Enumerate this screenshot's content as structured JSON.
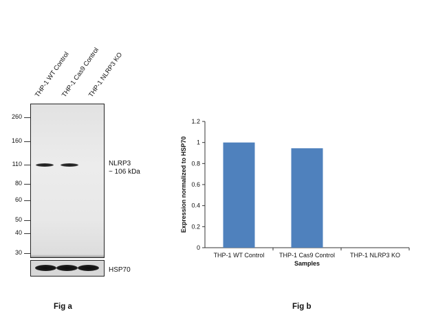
{
  "fig_a": {
    "lane_labels": [
      "THP-1 WT Control",
      "THP-1 Cas9 Control",
      "THP-1 NLRP3 KO"
    ],
    "mw_markers": [
      "260",
      "160",
      "110",
      "80",
      "60",
      "50",
      "40",
      "30"
    ],
    "target_label_line1": "NLRP3",
    "target_label_line2": "~ 106 kDa",
    "loading_label": "HSP70",
    "caption": "Fig a"
  },
  "fig_b": {
    "caption": "Fig b"
  },
  "chart_data": {
    "type": "bar",
    "categories": [
      "THP-1 WT Control",
      "THP-1 Cas9 Control",
      "THP-1 NLRP3 KO"
    ],
    "values": [
      1.0,
      0.945,
      0.0
    ],
    "xlabel": "Samples",
    "ylabel": "Expression  normalized to HSP70",
    "ylim": [
      0,
      1.2
    ],
    "yticks": [
      "0",
      "0.2",
      "0.4",
      "0.6",
      "0.8",
      "1",
      "1.2"
    ],
    "bar_color": "#4f81bd",
    "grid": false
  }
}
